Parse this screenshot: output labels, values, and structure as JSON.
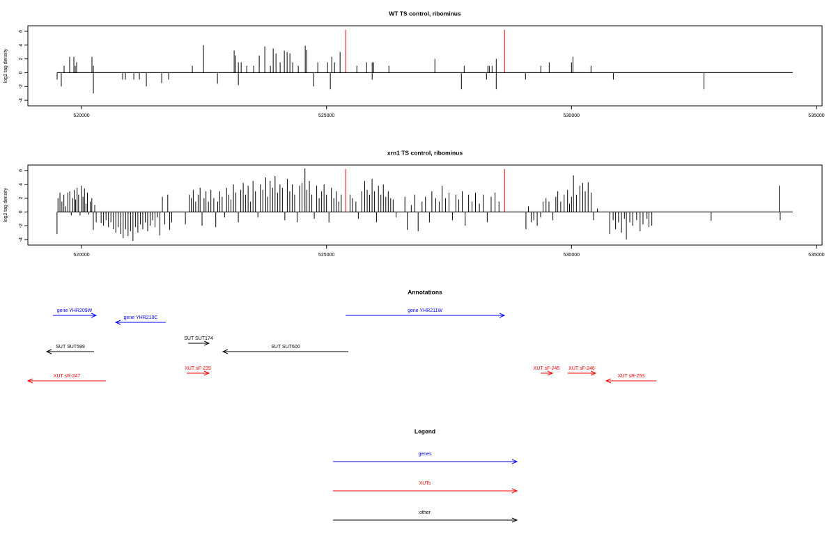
{
  "chart_data": [
    {
      "type": "spike",
      "title": "WT TS control, ribominus",
      "ylabel": "log2 tag density",
      "color": "#000000",
      "xlim": [
        518905,
        535114
      ],
      "ylim": [
        -4.8,
        6.8
      ],
      "xticks": [
        520000,
        525000,
        530000,
        535000
      ],
      "yticks": [
        -4,
        -2,
        0,
        2,
        4,
        6
      ],
      "x": [
        519644,
        519758,
        519844,
        519872,
        519900,
        520213,
        520242,
        522262,
        522489,
        523115,
        523144,
        523201,
        523258,
        523371,
        523514,
        523627,
        523741,
        523855,
        523912,
        523969,
        524054,
        524139,
        524196,
        524253,
        524310,
        524424,
        524566,
        524595,
        524822,
        525021,
        525107,
        525164,
        525277,
        525619,
        525818,
        525932,
        525960,
        526273,
        527212,
        527810,
        528293,
        528322,
        528379,
        528464,
        529374,
        529545,
        530000,
        530029,
        530398,
        519502,
        519587,
        520242,
        520839,
        520896,
        521067,
        521181,
        521323,
        521636,
        521778,
        522774,
        523201,
        524737,
        525078,
        525932,
        527753,
        528265,
        528464,
        529061,
        530854,
        532703
      ],
      "values": [
        1,
        2.3,
        2.3,
        1,
        1.5,
        2.3,
        1,
        1,
        4,
        3.2,
        2.5,
        1.5,
        1.5,
        1,
        1,
        2.5,
        3.8,
        1,
        3.5,
        2.8,
        1.5,
        3.2,
        3,
        2.8,
        1.5,
        1,
        3.9,
        3.3,
        1.5,
        1.5,
        2.3,
        1.5,
        3,
        1,
        1.5,
        1.5,
        1.5,
        1,
        2,
        1,
        1,
        1,
        1,
        2,
        1,
        1.5,
        1.5,
        2.3,
        1,
        -1,
        -2,
        -3,
        -1,
        -1,
        -1,
        -1,
        -2,
        -1.5,
        -1,
        -1.6,
        -1.8,
        -2,
        -2.4,
        -1,
        -2.4,
        -1,
        -2.4,
        -1,
        -1,
        -2.4
      ],
      "markers": {
        "color": "#ff0000",
        "x": [
          525391,
          528634
        ],
        "values": [
          6.2,
          6.2
        ]
      }
    },
    {
      "type": "spike",
      "title": "xrn1 TS control, ribominus",
      "ylabel": "log2 tag density",
      "color": "#000000",
      "xlim": [
        518905,
        535114
      ],
      "ylim": [
        -4.8,
        6.8
      ],
      "xticks": [
        520000,
        525000,
        530000,
        535000
      ],
      "yticks": [
        -4,
        -2,
        0,
        2,
        4,
        6
      ],
      "x": [
        519500,
        519520,
        519560,
        519600,
        519640,
        519680,
        519720,
        519760,
        519790,
        519820,
        519850,
        519880,
        519910,
        519940,
        519970,
        520000,
        520030,
        520060,
        520090,
        520120,
        520150,
        520180,
        520210,
        520240,
        520270,
        520300,
        520400,
        520450,
        520500,
        520550,
        520600,
        520650,
        520700,
        520750,
        520800,
        520850,
        520900,
        520950,
        521000,
        521050,
        521100,
        521150,
        521200,
        521250,
        521300,
        521350,
        521400,
        521450,
        521500,
        521550,
        521600,
        521650,
        521700,
        521760,
        521800,
        521840,
        522120,
        522200,
        522240,
        522280,
        522330,
        522380,
        522420,
        522460,
        522500,
        522540,
        522590,
        522640,
        522700,
        522740,
        522780,
        522820,
        522870,
        522920,
        522960,
        523000,
        523050,
        523100,
        523150,
        523200,
        523250,
        523300,
        523350,
        523400,
        523450,
        523500,
        523550,
        523600,
        523650,
        523700,
        523760,
        523800,
        523850,
        523900,
        523950,
        524000,
        524050,
        524100,
        524150,
        524200,
        524250,
        524300,
        524350,
        524400,
        524450,
        524500,
        524560,
        524600,
        524650,
        524700,
        524750,
        524800,
        524850,
        524900,
        524950,
        525000,
        525050,
        525100,
        525150,
        525200,
        525250,
        525300,
        525480,
        525530,
        525600,
        525650,
        525720,
        525780,
        525830,
        525880,
        525930,
        525980,
        526020,
        526060,
        526110,
        526160,
        526210,
        526260,
        526310,
        526360,
        526420,
        526600,
        526650,
        526730,
        526800,
        526870,
        526950,
        527020,
        527100,
        527150,
        527230,
        527300,
        527360,
        527430,
        527500,
        527570,
        527640,
        527700,
        527770,
        527830,
        527900,
        527970,
        528040,
        528120,
        528200,
        528280,
        528360,
        528440,
        528520,
        529070,
        529120,
        529180,
        529230,
        529300,
        529370,
        529420,
        529480,
        529540,
        529620,
        529680,
        529720,
        529780,
        529850,
        529920,
        529960,
        530000,
        530040,
        530100,
        530170,
        530230,
        530280,
        530340,
        530400,
        530450,
        530530,
        530780,
        530850,
        530900,
        530960,
        531020,
        531080,
        531120,
        531190,
        531250,
        531330,
        531400,
        531460,
        531540,
        531580,
        531640,
        532850,
        534240,
        534260
      ],
      "values": [
        -3.2,
        2,
        2.8,
        1.5,
        2.5,
        0.8,
        2.8,
        3,
        -0.5,
        2,
        3.2,
        1.8,
        3.5,
        2.5,
        -0.5,
        3.8,
        2.2,
        3.4,
        1.2,
        2.8,
        -0.4,
        1.5,
        2,
        -2.6,
        1,
        -1.5,
        -1.6,
        -2,
        -1.2,
        -2.2,
        -1.5,
        -2.5,
        -3,
        -2.2,
        -3.2,
        -3.8,
        -2.5,
        -3.5,
        -2.8,
        -4.2,
        -2.2,
        -3,
        -1.8,
        -2.5,
        -1.5,
        -2.8,
        -2,
        -1.2,
        -2.2,
        -0.8,
        -3.4,
        2.2,
        -1.8,
        2.5,
        -2.6,
        -1.5,
        -1.8,
        2.5,
        2,
        3.2,
        1.5,
        2.5,
        3.5,
        -2,
        2,
        3,
        1.5,
        3.2,
        2,
        -2.2,
        1.5,
        3,
        2.2,
        -0.8,
        3.5,
        2.5,
        1.8,
        4,
        2.8,
        -1.5,
        3.2,
        4.2,
        2.5,
        3.8,
        1.5,
        4.5,
        3,
        -0.8,
        4,
        3.2,
        5,
        2.2,
        4.5,
        3.5,
        5.2,
        2.8,
        4,
        3.5,
        -1.2,
        4.8,
        3,
        4,
        2.5,
        -1.5,
        3.8,
        4.2,
        6.3,
        3.2,
        4.5,
        2.5,
        -1,
        3.8,
        2,
        3,
        4,
        2.5,
        -1.5,
        3.5,
        2,
        3,
        1.5,
        2.5,
        2.5,
        2,
        1.5,
        -1,
        3,
        4.5,
        3.2,
        2.5,
        4.8,
        3,
        -1.5,
        3.8,
        2.5,
        4,
        2.2,
        3,
        2,
        1.8,
        -0.8,
        2.2,
        -2.6,
        1,
        2.5,
        -2.8,
        1.5,
        2.2,
        -1.5,
        3,
        2,
        1.5,
        3.8,
        2,
        2.8,
        -1.2,
        2.5,
        1.8,
        3,
        -2,
        2.5,
        1.5,
        2.8,
        1.2,
        2.5,
        -1.5,
        2.2,
        2.8,
        1.5,
        -2.5,
        0.8,
        -1.5,
        -1.2,
        -2,
        -0.8,
        1.5,
        2,
        1.5,
        -1.2,
        2.2,
        3,
        1.5,
        2.5,
        3.2,
        1.2,
        2.2,
        5.3,
        2.5,
        3.8,
        4.2,
        3,
        4.3,
        2.8,
        -1.2,
        0.5,
        -3.2,
        -1.2,
        -2.5,
        -1.5,
        -3,
        -1,
        -4,
        -1.5,
        -2,
        -1.2,
        -2.8,
        -1.8,
        -1,
        -2.2,
        -2,
        -1.3,
        3.8,
        -1.2
      ],
      "markers": {
        "color": "#ff0000",
        "x": [
          525391,
          528634
        ],
        "values": [
          6.2,
          6.2
        ]
      }
    }
  ],
  "annotations": {
    "title": "Annotations",
    "features": [
      {
        "label": "gene YHR209W",
        "start": 519417,
        "end": 520298,
        "strand": "+",
        "color": "#0000ff"
      },
      {
        "label": "gene YHR210C",
        "start": 520697,
        "end": 521720,
        "strand": "-",
        "color": "#0000ff"
      },
      {
        "label": "gene YHR211W",
        "start": 525389,
        "end": 528631,
        "strand": "+",
        "color": "#0000ff"
      },
      {
        "label": "SUT SUT599",
        "start": 519289,
        "end": 520256,
        "strand": "-",
        "color": "#000000"
      },
      {
        "label": "SUT SUT174",
        "start": 522175,
        "end": 522602,
        "strand": "+",
        "color": "#000000"
      },
      {
        "label": "SUT SUT600",
        "start": 522886,
        "end": 525445,
        "strand": "-",
        "color": "#000000"
      },
      {
        "label": "XUT sR-247",
        "start": 518905,
        "end": 520497,
        "strand": "-",
        "color": "#ff0000"
      },
      {
        "label": "XUT sF-239",
        "start": 522147,
        "end": 522602,
        "strand": "+",
        "color": "#ff0000"
      },
      {
        "label": "XUT sF-245",
        "start": 529370,
        "end": 529611,
        "strand": "+",
        "color": "#ff0000"
      },
      {
        "label": "XUT sF-246",
        "start": 529924,
        "end": 530493,
        "strand": "+",
        "color": "#ff0000"
      },
      {
        "label": "XUT sR-253",
        "start": 530706,
        "end": 531730,
        "strand": "-",
        "color": "#ff0000"
      }
    ]
  },
  "legend": {
    "title": "Legend",
    "entries": [
      {
        "label": "genes",
        "color": "#0000ff"
      },
      {
        "label": "XUTs",
        "color": "#ff0000"
      },
      {
        "label": "other",
        "color": "#000000"
      }
    ]
  }
}
